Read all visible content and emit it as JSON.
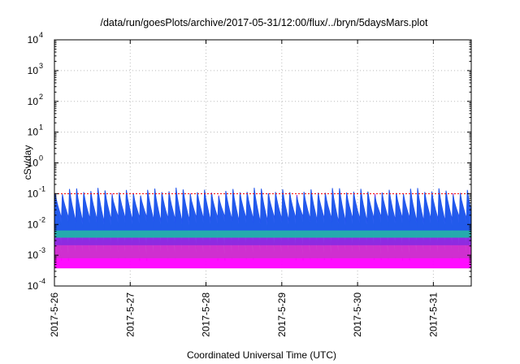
{
  "chart_data": {
    "type": "area",
    "title": "/data/run/goesPlots/archive/2017-05-31/12:00/flux/../bryn/5daysMars.plot",
    "xlabel": "Coordinated Universal Time (UTC)",
    "ylabel": "cSv/day",
    "y_scale": "log",
    "ylim": [
      0.0001,
      10000
    ],
    "y_ticks": [
      {
        "base": "10",
        "exp": "-4",
        "value": 0.0001
      },
      {
        "base": "10",
        "exp": "-3",
        "value": 0.001
      },
      {
        "base": "10",
        "exp": "-2",
        "value": 0.01
      },
      {
        "base": "10",
        "exp": "-1",
        "value": 0.1
      },
      {
        "base": "10",
        "exp": "0",
        "value": 1
      },
      {
        "base": "10",
        "exp": "1",
        "value": 10
      },
      {
        "base": "10",
        "exp": "2",
        "value": 100
      },
      {
        "base": "10",
        "exp": "3",
        "value": 1000
      },
      {
        "base": "10",
        "exp": "4",
        "value": 10000
      }
    ],
    "x_ticks": [
      "2017-5-26",
      "2017-5-27",
      "2017-5-28",
      "2017-5-29",
      "2017-5-30",
      "2017-5-31"
    ],
    "xlim": [
      "2017-05-26 00:00",
      "2017-05-31 12:00"
    ],
    "grid": true,
    "reference_line": 0.1,
    "cycle_hours": 2.25,
    "series": [
      {
        "color": "#ff00ff",
        "peak": 0.055,
        "trough": 0.0007
      },
      {
        "color": "#cc33cc",
        "peak": 0.07,
        "trough": 0.0015
      },
      {
        "color": "#8a2be2",
        "peak": 0.085,
        "trough": 0.004
      },
      {
        "color": "#20b2aa",
        "peak": 0.095,
        "trough": 0.007
      },
      {
        "color": "#2255ee",
        "peak": 0.12,
        "trough": 0.012
      }
    ],
    "colors": {
      "reference_line": "#ff0000",
      "grid": "#bbbbbb",
      "axis": "#000000"
    }
  }
}
